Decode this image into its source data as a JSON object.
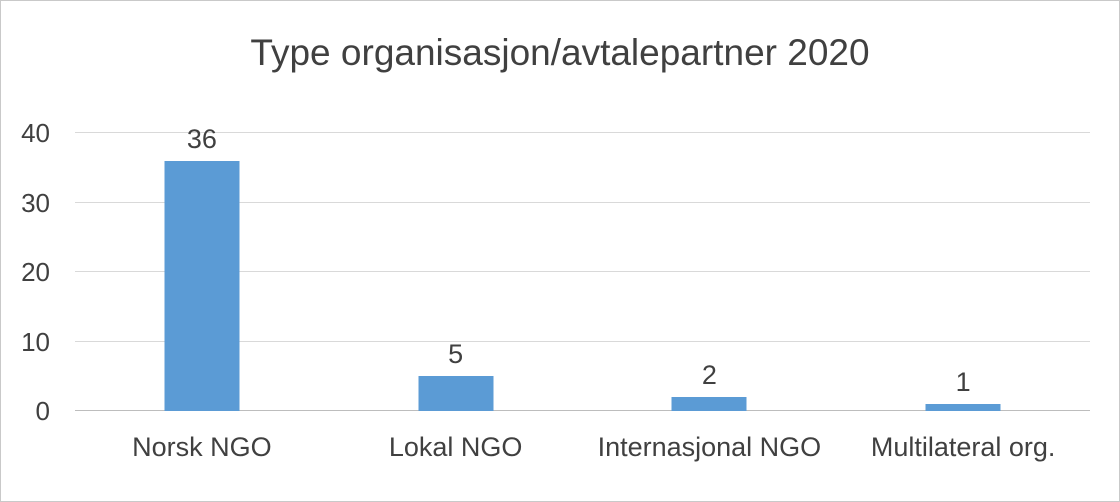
{
  "chart_data": {
    "type": "bar",
    "title": "Type organisasjon/avtalepartner 2020",
    "categories": [
      "Norsk NGO",
      "Lokal NGO",
      "Internasjonal NGO",
      "Multilateral org."
    ],
    "values": [
      36,
      5,
      2,
      1
    ],
    "xlabel": "",
    "ylabel": "",
    "ylim": [
      0,
      40
    ],
    "yticks": [
      0,
      10,
      20,
      30,
      40
    ],
    "grid": true,
    "legend": false,
    "bar_color": "#5B9BD5",
    "gridline_color": "#d9d9d9",
    "text_color": "#404040"
  }
}
